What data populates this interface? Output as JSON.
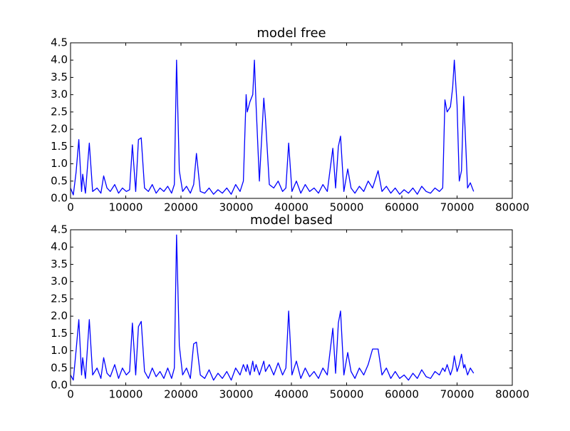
{
  "chart_data": [
    {
      "type": "line",
      "title": "model free",
      "x": [
        0,
        500,
        1000,
        1500,
        2000,
        2200,
        2700,
        3400,
        4000,
        4800,
        5500,
        6000,
        6600,
        7200,
        8000,
        8700,
        9400,
        10100,
        10700,
        11200,
        11800,
        12300,
        12800,
        13400,
        14100,
        14800,
        15500,
        16200,
        16900,
        17600,
        18300,
        18800,
        19200,
        19700,
        20300,
        21000,
        21700,
        22300,
        22800,
        23500,
        24300,
        25100,
        25900,
        26700,
        27500,
        28300,
        29100,
        29900,
        30700,
        31300,
        31800,
        32000,
        32500,
        33000,
        33300,
        33600,
        34200,
        35000,
        35300,
        36000,
        36800,
        37600,
        38400,
        39000,
        39500,
        40100,
        40900,
        41700,
        42500,
        43300,
        44100,
        44900,
        45700,
        46500,
        47500,
        48000,
        48500,
        48900,
        49500,
        50200,
        50800,
        51500,
        52300,
        53100,
        53900,
        54700,
        55700,
        56400,
        57200,
        58000,
        58800,
        59600,
        60400,
        61200,
        62000,
        62800,
        63600,
        64400,
        65200,
        66000,
        66800,
        67400,
        67800,
        68200,
        68800,
        69200,
        69500,
        70000,
        70400,
        70800,
        71200,
        71400,
        71900,
        72400,
        73000
      ],
      "series": [
        {
          "color": "#0000ff",
          "values": [
            0.3,
            0.1,
            0.75,
            1.7,
            0.2,
            0.7,
            0.15,
            1.6,
            0.2,
            0.3,
            0.15,
            0.65,
            0.3,
            0.2,
            0.4,
            0.15,
            0.3,
            0.2,
            0.25,
            1.55,
            0.2,
            1.7,
            1.75,
            0.3,
            0.2,
            0.4,
            0.15,
            0.3,
            0.2,
            0.35,
            0.15,
            0.4,
            4.0,
            0.8,
            0.2,
            0.35,
            0.15,
            0.4,
            1.3,
            0.2,
            0.15,
            0.3,
            0.12,
            0.25,
            0.15,
            0.3,
            0.12,
            0.4,
            0.2,
            0.5,
            3.0,
            2.5,
            2.8,
            3.0,
            4.0,
            2.7,
            0.5,
            2.9,
            2.3,
            0.4,
            0.3,
            0.5,
            0.2,
            0.3,
            1.6,
            0.2,
            0.5,
            0.15,
            0.4,
            0.2,
            0.3,
            0.15,
            0.4,
            0.2,
            1.45,
            0.3,
            1.5,
            1.8,
            0.2,
            0.85,
            0.3,
            0.15,
            0.35,
            0.2,
            0.5,
            0.3,
            0.8,
            0.2,
            0.35,
            0.15,
            0.3,
            0.12,
            0.25,
            0.15,
            0.3,
            0.12,
            0.35,
            0.2,
            0.15,
            0.3,
            0.2,
            0.3,
            2.85,
            2.5,
            2.65,
            3.2,
            4.0,
            2.7,
            0.5,
            0.8,
            2.95,
            2.2,
            0.3,
            0.45,
            0.2
          ]
        }
      ],
      "xlim": [
        0,
        80000
      ],
      "xticks": [
        0,
        10000,
        20000,
        30000,
        40000,
        50000,
        60000,
        70000,
        80000
      ],
      "ylim": [
        0,
        4.5
      ],
      "yticks": [
        {
          "value": 0,
          "label": "0.0"
        },
        {
          "value": 0.5,
          "label": "0.5"
        },
        {
          "value": 1,
          "label": "1.0"
        },
        {
          "value": 1.5,
          "label": "1.5"
        },
        {
          "value": 2,
          "label": "2.0"
        },
        {
          "value": 2.5,
          "label": "2.5"
        },
        {
          "value": 3,
          "label": "3.0"
        },
        {
          "value": 3.5,
          "label": "3.5"
        },
        {
          "value": 4,
          "label": "4.0"
        },
        {
          "value": 4.5,
          "label": "4.5"
        }
      ]
    },
    {
      "type": "line",
      "title": "model based",
      "x": [
        0,
        500,
        1000,
        1500,
        2000,
        2200,
        2700,
        3400,
        4000,
        4800,
        5500,
        6000,
        6600,
        7200,
        8000,
        8700,
        9400,
        10100,
        10700,
        11200,
        11800,
        12300,
        12800,
        13400,
        14100,
        14800,
        15500,
        16200,
        16900,
        17600,
        18300,
        18800,
        19200,
        19700,
        20300,
        21000,
        21700,
        22300,
        22800,
        23500,
        24300,
        25100,
        25900,
        26700,
        27500,
        28300,
        29100,
        29900,
        30700,
        31300,
        31800,
        32000,
        32500,
        33000,
        33300,
        33600,
        34200,
        35000,
        35300,
        36000,
        36800,
        37600,
        38400,
        39000,
        39500,
        40100,
        40900,
        41700,
        42500,
        43300,
        44100,
        44900,
        45700,
        46500,
        47500,
        48000,
        48500,
        48900,
        49500,
        50200,
        50800,
        51500,
        52300,
        53100,
        53900,
        54700,
        55700,
        56400,
        57200,
        58000,
        58800,
        59600,
        60400,
        61200,
        62000,
        62800,
        63600,
        64400,
        65200,
        66000,
        66800,
        67400,
        67800,
        68200,
        68800,
        69200,
        69500,
        70000,
        70400,
        70800,
        71200,
        71400,
        71900,
        72400,
        73000
      ],
      "series": [
        {
          "color": "#0000ff",
          "values": [
            0.3,
            0.15,
            1.0,
            1.9,
            0.3,
            0.8,
            0.2,
            1.9,
            0.3,
            0.5,
            0.2,
            0.8,
            0.35,
            0.25,
            0.6,
            0.2,
            0.5,
            0.3,
            0.4,
            1.8,
            0.3,
            1.7,
            1.85,
            0.4,
            0.2,
            0.5,
            0.25,
            0.4,
            0.2,
            0.5,
            0.2,
            0.5,
            4.35,
            1.15,
            0.3,
            0.5,
            0.2,
            1.2,
            1.25,
            0.3,
            0.2,
            0.45,
            0.15,
            0.35,
            0.2,
            0.4,
            0.15,
            0.5,
            0.3,
            0.6,
            0.4,
            0.6,
            0.3,
            0.7,
            0.4,
            0.6,
            0.3,
            0.7,
            0.4,
            0.6,
            0.3,
            0.65,
            0.3,
            0.5,
            2.15,
            0.3,
            0.7,
            0.2,
            0.5,
            0.25,
            0.4,
            0.2,
            0.5,
            0.3,
            1.65,
            0.35,
            1.8,
            2.15,
            0.3,
            0.95,
            0.4,
            0.2,
            0.5,
            0.3,
            0.6,
            1.05,
            1.05,
            0.3,
            0.5,
            0.2,
            0.4,
            0.2,
            0.3,
            0.15,
            0.35,
            0.2,
            0.45,
            0.25,
            0.2,
            0.4,
            0.3,
            0.5,
            0.4,
            0.6,
            0.3,
            0.5,
            0.85,
            0.4,
            0.6,
            0.9,
            0.5,
            0.6,
            0.3,
            0.5,
            0.35
          ]
        }
      ],
      "xlim": [
        0,
        80000
      ],
      "xticks": [
        0,
        10000,
        20000,
        30000,
        40000,
        50000,
        60000,
        70000,
        80000
      ],
      "ylim": [
        0,
        4.5
      ],
      "yticks": [
        {
          "value": 0,
          "label": "0.0"
        },
        {
          "value": 0.5,
          "label": "0.5"
        },
        {
          "value": 1,
          "label": "1.0"
        },
        {
          "value": 1.5,
          "label": "1.5"
        },
        {
          "value": 2,
          "label": "2.0"
        },
        {
          "value": 2.5,
          "label": "2.5"
        },
        {
          "value": 3,
          "label": "3.0"
        },
        {
          "value": 3.5,
          "label": "3.5"
        },
        {
          "value": 4,
          "label": "4.0"
        },
        {
          "value": 4.5,
          "label": "4.5"
        }
      ]
    }
  ]
}
